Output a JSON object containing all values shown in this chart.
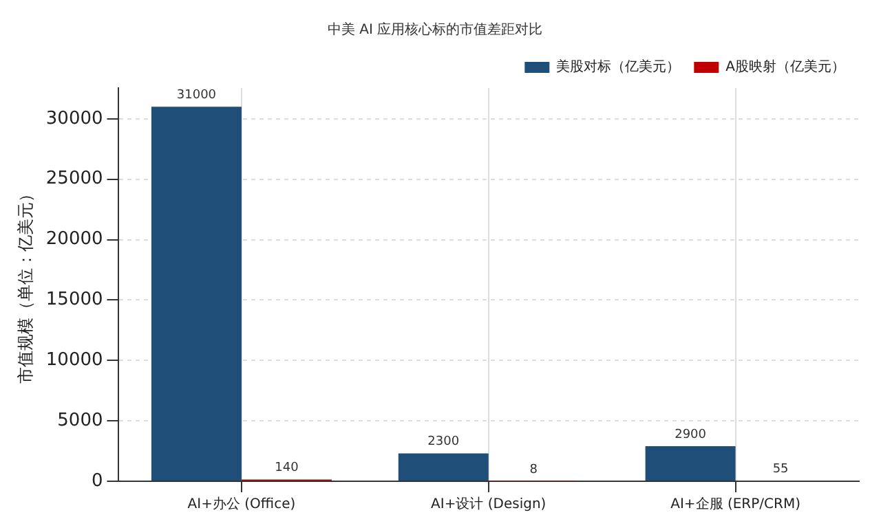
{
  "chart_data": {
    "type": "bar",
    "title": "中美 AI 应用核心标的市值差距对比",
    "ylabel": "市值规模（单位：亿美元）",
    "categories": [
      "AI+办公 (Office)",
      "AI+设计 (Design)",
      "AI+企服 (ERP/CRM)"
    ],
    "series": [
      {
        "name": "美股对标（亿美元）",
        "color": "#1f4e79",
        "values": [
          31000,
          2300,
          2900
        ]
      },
      {
        "name": "A股映射（亿美元）",
        "color": "#c00000",
        "values": [
          140,
          8,
          55
        ]
      }
    ],
    "ylim": [
      0,
      32550
    ],
    "yticks": [
      0,
      5000,
      10000,
      15000,
      20000,
      25000,
      30000
    ],
    "grid": true,
    "legend": "top right",
    "data_labels": true
  }
}
